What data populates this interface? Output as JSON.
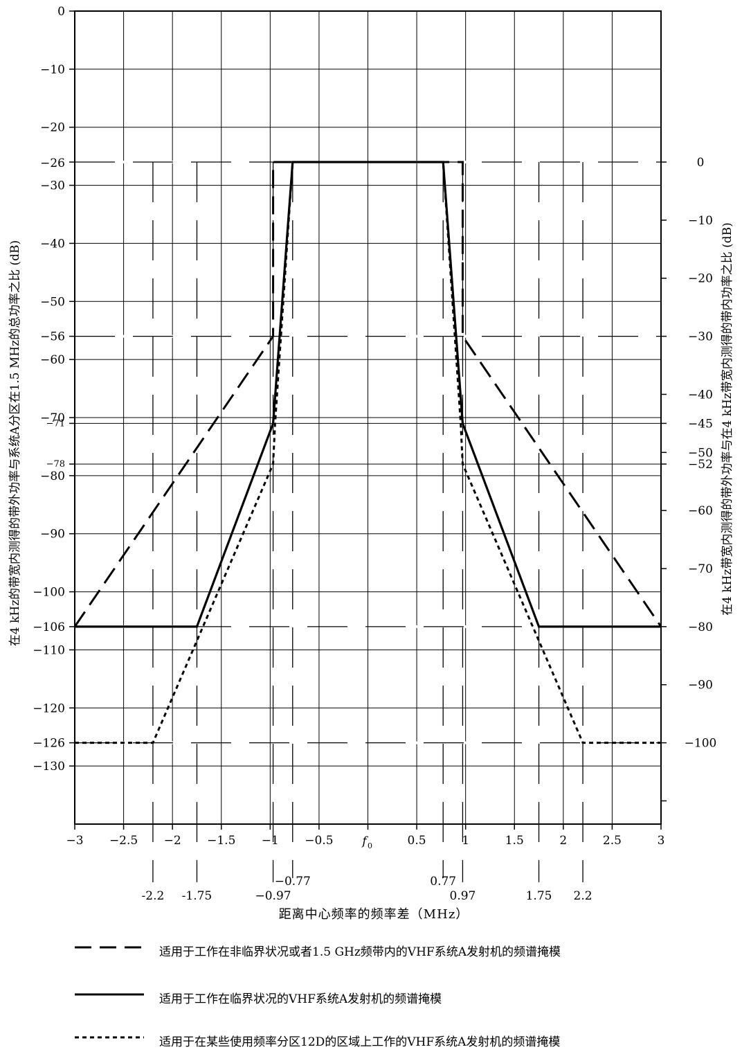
{
  "chart_data": {
    "type": "line",
    "title": "",
    "xlabel": "距离中心频率的频率差（MHz）",
    "ylabel_left": "在4 kHz的带宽内测得的带外功率与系统A分区在1.5 MHz的总功率之比 (dB)",
    "ylabel_right": "在4 kHz带宽内测得的带外功率与在4 kHz带宽内测得的带内功率之比 (dB)",
    "xlim": [
      -3,
      3
    ],
    "ylim": [
      -140,
      0
    ],
    "grid": true,
    "legend_position": "bottom",
    "x_ticks": [
      {
        "value": -3,
        "label": "−3"
      },
      {
        "value": -2.5,
        "label": "−2.5"
      },
      {
        "value": -2,
        "label": "−2"
      },
      {
        "value": -1.5,
        "label": "−1.5"
      },
      {
        "value": -1,
        "label": "−1"
      },
      {
        "value": -0.5,
        "label": "−0.5"
      },
      {
        "value": 0,
        "label": "f0"
      },
      {
        "value": 0.5,
        "label": "0.5"
      },
      {
        "value": 1,
        "label": "1"
      },
      {
        "value": 1.5,
        "label": "1.5"
      },
      {
        "value": 2,
        "label": "2"
      },
      {
        "value": 2.5,
        "label": "2.5"
      },
      {
        "value": 3,
        "label": "3"
      }
    ],
    "x_marker_labels": [
      {
        "value": -2.2,
        "label": "-2.2",
        "row": 2
      },
      {
        "value": -1.75,
        "label": "-1.75",
        "row": 2
      },
      {
        "value": -0.97,
        "label": "−0.97",
        "row": 2
      },
      {
        "value": -0.77,
        "label": "−0.77",
        "row": 1
      },
      {
        "value": 0.77,
        "label": "0.77",
        "row": 1
      },
      {
        "value": 0.97,
        "label": "0.97",
        "row": 2
      },
      {
        "value": 1.75,
        "label": "1.75",
        "row": 2
      },
      {
        "value": 2.2,
        "label": "2.2",
        "row": 2
      }
    ],
    "y_ticks_left": [
      {
        "value": 0,
        "label": "0"
      },
      {
        "value": -10,
        "label": "−10"
      },
      {
        "value": -20,
        "label": "−20"
      },
      {
        "value": -26,
        "label": "−26"
      },
      {
        "value": -30,
        "label": "−30"
      },
      {
        "value": -40,
        "label": "−40"
      },
      {
        "value": -50,
        "label": "−50"
      },
      {
        "value": -56,
        "label": "−56"
      },
      {
        "value": -60,
        "label": "−60"
      },
      {
        "value": -70,
        "label": "−70"
      },
      {
        "value": -71,
        "label": "−71",
        "small": true
      },
      {
        "value": -78,
        "label": "−78",
        "small": true
      },
      {
        "value": -80,
        "label": "−80"
      },
      {
        "value": -90,
        "label": "−90"
      },
      {
        "value": -100,
        "label": "−100"
      },
      {
        "value": -106,
        "label": "−106"
      },
      {
        "value": -110,
        "label": "−110"
      },
      {
        "value": -120,
        "label": "−120"
      },
      {
        "value": -126,
        "label": "−126"
      },
      {
        "value": -130,
        "label": "−130"
      }
    ],
    "y_ticks_right": [
      {
        "value": 0,
        "label": "0"
      },
      {
        "value": -10,
        "label": "−10"
      },
      {
        "value": -20,
        "label": "−20"
      },
      {
        "value": -30,
        "label": "−30"
      },
      {
        "value": -40,
        "label": "−40"
      },
      {
        "value": -45,
        "label": "−45"
      },
      {
        "value": -50,
        "label": "−50"
      },
      {
        "value": -52,
        "label": "−52"
      },
      {
        "value": -60,
        "label": "−60"
      },
      {
        "value": -70,
        "label": "−70"
      },
      {
        "value": -80,
        "label": "−80"
      },
      {
        "value": -90,
        "label": "−90"
      },
      {
        "value": -100,
        "label": "−100"
      },
      {
        "value": -110,
        "label": ""
      }
    ],
    "right_axis_offset_db": -26,
    "dashed_h_refs": [
      -26,
      -56,
      -106,
      -126
    ],
    "solid_h_refs": [
      -71,
      -78
    ],
    "dashed_v_refs": [
      -2.2,
      -1.75,
      -0.97,
      -0.77,
      0.77,
      0.97,
      1.75,
      2.2
    ],
    "series": [
      {
        "name": "适用于工作在非临界状况或者1.5 GHz频带内的VHF系统A发射机的频谱掩模",
        "style": "long-dash",
        "x": [
          -3,
          -0.97,
          -0.97,
          0.97,
          0.97,
          3
        ],
        "y": [
          -106,
          -56,
          -26,
          -26,
          -56,
          -106
        ]
      },
      {
        "name": "适用于工作在临界状况的VHF系统A发射机的频谱掩模",
        "style": "solid",
        "x": [
          -3,
          -1.75,
          -0.97,
          -0.77,
          0.77,
          0.97,
          1.75,
          3
        ],
        "y": [
          -106,
          -106,
          -71,
          -26,
          -26,
          -71,
          -106,
          -106
        ]
      },
      {
        "name": "适用于在某些使用频率分区12D的区域上工作的VHF系统A发射机的频谱掩模",
        "style": "dotted",
        "x": [
          -3,
          -2.2,
          -0.97,
          -0.95,
          -0.77,
          0.77,
          0.95,
          0.97,
          2.2,
          3
        ],
        "y": [
          -126,
          -126,
          -78,
          -71,
          -26,
          -26,
          -71,
          -78,
          -126,
          -126
        ]
      }
    ]
  }
}
